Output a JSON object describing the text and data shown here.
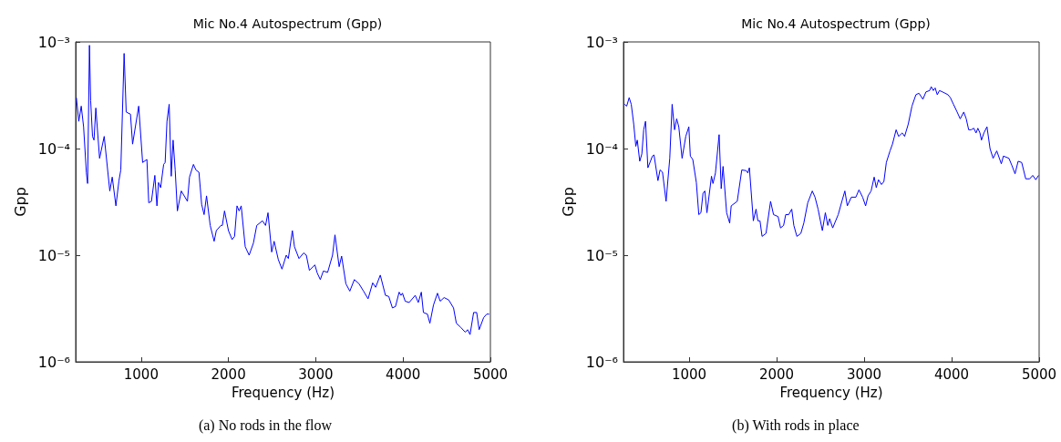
{
  "chart_data": [
    {
      "type": "line",
      "title": "Mic No.4 Autospectrum (Gpp)",
      "xlabel": "Frequency (Hz)",
      "ylabel": "Gpp",
      "annotations": [
        "(a) No rods in the flow"
      ],
      "log": "y",
      "grid": false,
      "marker": "none",
      "line_style": "solid",
      "xlim": [
        250,
        5000
      ],
      "xticks": [
        1000,
        2000,
        3000,
        4000,
        5000
      ],
      "ylim": [
        1e-06,
        0.001
      ],
      "yticks": [
        {
          "value": 1e-06,
          "label": "10⁻⁶"
        },
        {
          "value": 1e-05,
          "label": "10⁻⁵"
        },
        {
          "value": 0.0001,
          "label": "10⁻⁴"
        },
        {
          "value": 0.001,
          "label": "10⁻³"
        }
      ],
      "series": [
        {
          "color": "#0000ff",
          "x": [
            258,
            286,
            314,
            341,
            373,
            387,
            408,
            422,
            443,
            460,
            481,
            524,
            577,
            641,
            669,
            711,
            746,
            767,
            805,
            829,
            878,
            902,
            972,
            1017,
            1066,
            1087,
            1118,
            1157,
            1181,
            1199,
            1223,
            1258,
            1275,
            1296,
            1321,
            1345,
            1366,
            1390,
            1415,
            1460,
            1530,
            1554,
            1599,
            1627,
            1662,
            1693,
            1721,
            1749,
            1791,
            1836,
            1861,
            1913,
            1930,
            1955,
            2000,
            2042,
            2070,
            2098,
            2122,
            2146,
            2192,
            2237,
            2286,
            2324,
            2390,
            2425,
            2453,
            2495,
            2523,
            2571,
            2613,
            2662,
            2686,
            2732,
            2756,
            2808,
            2861,
            2892,
            2927,
            2990,
            3017,
            3052,
            3087,
            3136,
            3192,
            3220,
            3268,
            3296,
            3345,
            3390,
            3442,
            3495,
            3547,
            3599,
            3652,
            3686,
            3739,
            3798,
            3836,
            3878,
            3913,
            3955,
            3976,
            3993,
            4024,
            4070,
            4139,
            4174,
            4209,
            4233,
            4279,
            4307,
            4348,
            4394,
            4425,
            4470,
            4523,
            4578,
            4610,
            4662,
            4697,
            4714,
            4739,
            4767,
            4808,
            4843,
            4871,
            4923,
            4958,
            4986
          ],
          "values": [
            0.0003,
            0.00018,
            0.00025,
            0.00016,
            5.9e-05,
            4.7e-05,
            0.00093,
            0.00028,
            0.00013,
            0.00012,
            0.00024,
            8.1e-05,
            0.00013,
            4e-05,
            5.4e-05,
            2.9e-05,
            5e-05,
            6.3e-05,
            0.00078,
            0.00022,
            0.00021,
            0.00011,
            0.00025,
            7.4e-05,
            7.9e-05,
            3.1e-05,
            3.2e-05,
            5.6e-05,
            2.9e-05,
            4.8e-05,
            4.3e-05,
            7.1e-05,
            7.4e-05,
            0.00018,
            0.00026,
            5.5e-05,
            0.00012,
            6.3e-05,
            2.6e-05,
            4e-05,
            3.2e-05,
            5.4e-05,
            7.1e-05,
            6.3e-05,
            6e-05,
            3e-05,
            2.4e-05,
            3.6e-05,
            1.9e-05,
            1.35e-05,
            1.7e-05,
            1.9e-05,
            1.9e-05,
            2.6e-05,
            1.7e-05,
            1.4e-05,
            1.5e-05,
            2.9e-05,
            2.6e-05,
            2.9e-05,
            1.2e-05,
            1e-05,
            1.3e-05,
            1.9e-05,
            2.1e-05,
            1.9e-05,
            2.5e-05,
            1.07e-05,
            1.35e-05,
            9.1e-06,
            7.4e-06,
            1e-05,
            9.3e-06,
            1.7e-05,
            1.2e-05,
            9.3e-06,
            1.05e-05,
            1e-05,
            7.2e-06,
            8.1e-06,
            6.8e-06,
            5.9e-06,
            7.1e-06,
            6.9e-06,
            1e-05,
            1.55e-05,
            7.8e-06,
            9.8e-06,
            5.4e-06,
            4.6e-06,
            5.9e-06,
            5.4e-06,
            4.6e-06,
            3.9e-06,
            5.5e-06,
            5e-06,
            6.5e-06,
            4.2e-06,
            4.1e-06,
            3.2e-06,
            3.3e-06,
            4.5e-06,
            4.2e-06,
            4.4e-06,
            3.7e-06,
            3.6e-06,
            4.2e-06,
            3.6e-06,
            4.5e-06,
            2.9e-06,
            2.8e-06,
            2.3e-06,
            3.4e-06,
            4.4e-06,
            3.7e-06,
            4e-06,
            3.8e-06,
            3.2e-06,
            2.3e-06,
            2.1e-06,
            1.95e-06,
            1.9e-06,
            2e-06,
            1.8e-06,
            2.9e-06,
            2.9e-06,
            2e-06,
            2.6e-06,
            2.8e-06,
            2.8e-06
          ]
        }
      ]
    },
    {
      "type": "line",
      "title": "Mic No.4 Autospectrum (Gpp)",
      "xlabel": "Frequency (Hz)",
      "ylabel": "Gpp",
      "annotations": [
        "(b) With rods in place"
      ],
      "log": "y",
      "grid": false,
      "marker": "none",
      "line_style": "solid",
      "xlim": [
        250,
        5000
      ],
      "xticks": [
        1000,
        2000,
        3000,
        4000,
        5000
      ],
      "ylim": [
        1e-06,
        0.001
      ],
      "yticks": [
        {
          "value": 1e-06,
          "label": "10⁻⁶"
        },
        {
          "value": 1e-05,
          "label": "10⁻⁵"
        },
        {
          "value": 0.0001,
          "label": "10⁻⁴"
        },
        {
          "value": 0.001,
          "label": "10⁻³"
        }
      ],
      "series": [
        {
          "color": "#0000ff",
          "x": [
            263,
            287,
            315,
            339,
            367,
            391,
            408,
            436,
            460,
            481,
            502,
            529,
            581,
            599,
            644,
            668,
            696,
            737,
            779,
            806,
            834,
            858,
            882,
            920,
            962,
            997,
            1014,
            1042,
            1083,
            1111,
            1135,
            1159,
            1180,
            1204,
            1256,
            1273,
            1301,
            1343,
            1367,
            1388,
            1429,
            1464,
            1481,
            1550,
            1602,
            1654,
            1671,
            1689,
            1734,
            1765,
            1786,
            1810,
            1834,
            1879,
            1931,
            1965,
            2017,
            2045,
            2080,
            2104,
            2138,
            2173,
            2197,
            2232,
            2277,
            2311,
            2356,
            2408,
            2439,
            2474,
            2523,
            2557,
            2585,
            2606,
            2641,
            2704,
            2746,
            2780,
            2808,
            2854,
            2906,
            2941,
            2983,
            3017,
            3045,
            3080,
            3115,
            3139,
            3164,
            3199,
            3226,
            3254,
            3296,
            3324,
            3366,
            3394,
            3436,
            3463,
            3505,
            3547,
            3592,
            3627,
            3672,
            3707,
            3749,
            3767,
            3791,
            3812,
            3836,
            3861,
            3895,
            3958,
            3986,
            4021,
            4063,
            4098,
            4139,
            4167,
            4195,
            4223,
            4254,
            4279,
            4300,
            4324,
            4341,
            4369,
            4404,
            4439,
            4474,
            4516,
            4568,
            4592,
            4655,
            4690,
            4725,
            4760,
            4801,
            4847,
            4892,
            4927,
            4962,
            4993
          ],
          "values": [
            0.00026,
            0.00025,
            0.0003,
            0.00026,
            0.00017,
            0.000105,
            0.00012,
            7.6e-05,
            8.9e-05,
            0.00015,
            0.00018,
            6.6e-05,
            8.5e-05,
            8.7e-05,
            5e-05,
            6.3e-05,
            6e-05,
            3.2e-05,
            8.1e-05,
            0.00026,
            0.00015,
            0.00019,
            0.00016,
            8.1e-05,
            0.00013,
            0.00016,
            8.5e-05,
            7.9e-05,
            4.8e-05,
            2.4e-05,
            2.5e-05,
            3.8e-05,
            4e-05,
            2.5e-05,
            5.5e-05,
            4.7e-05,
            5.9e-05,
            0.000135,
            4.2e-05,
            6.8e-05,
            2.5e-05,
            2e-05,
            2.9e-05,
            3.2e-05,
            6.3e-05,
            6.2e-05,
            5.9e-05,
            6.6e-05,
            2.1e-05,
            2.7e-05,
            2.1e-05,
            2.1e-05,
            1.5e-05,
            1.6e-05,
            3.2e-05,
            2.4e-05,
            2.3e-05,
            1.8e-05,
            1.9e-05,
            2.4e-05,
            2.4e-05,
            2.7e-05,
            1.9e-05,
            1.5e-05,
            1.6e-05,
            2e-05,
            3.1e-05,
            4e-05,
            3.5e-05,
            2.7e-05,
            1.7e-05,
            2.5e-05,
            1.9e-05,
            2.2e-05,
            1.8e-05,
            2.4e-05,
            3.2e-05,
            4e-05,
            2.9e-05,
            3.5e-05,
            3.5e-05,
            4.1e-05,
            3.5e-05,
            2.9e-05,
            3.6e-05,
            4e-05,
            5.4e-05,
            4.3e-05,
            5.1e-05,
            4.6e-05,
            4.9e-05,
            7.4e-05,
            9.5e-05,
            0.00011,
            0.00015,
            0.00013,
            0.00014,
            0.00013,
            0.00017,
            0.00025,
            0.00032,
            0.00033,
            0.00029,
            0.00034,
            0.00035,
            0.00038,
            0.00035,
            0.00037,
            0.00032,
            0.00035,
            0.00034,
            0.00032,
            0.0003,
            0.00026,
            0.00022,
            0.00019,
            0.00022,
            0.00019,
            0.00015,
            0.00015,
            0.000155,
            0.00014,
            0.000155,
            0.00014,
            0.00012,
            0.00014,
            0.00016,
            0.0001,
            8.1e-05,
            9.5e-05,
            7.2e-05,
            8.5e-05,
            8.1e-05,
            6.9e-05,
            5.8e-05,
            7.6e-05,
            7.4e-05,
            5.2e-05,
            5.2e-05,
            5.6e-05,
            5.1e-05,
            5.6e-05
          ]
        }
      ]
    }
  ]
}
